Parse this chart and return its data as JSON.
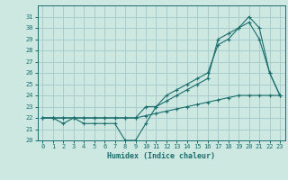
{
  "xlabel": "Humidex (Indice chaleur)",
  "ylabel": "",
  "background_color": "#cce8e0",
  "grid_color": "#aacccc",
  "line_color": "#1a6e6e",
  "xlim": [
    -0.5,
    23.5
  ],
  "ylim": [
    20,
    32
  ],
  "xticks": [
    0,
    1,
    2,
    3,
    4,
    5,
    6,
    7,
    8,
    9,
    10,
    11,
    12,
    13,
    14,
    15,
    16,
    17,
    18,
    19,
    20,
    21,
    22,
    23
  ],
  "yticks": [
    20,
    21,
    22,
    23,
    24,
    25,
    26,
    27,
    28,
    29,
    30,
    31
  ],
  "series1": [
    22,
    22,
    22,
    22,
    22,
    22,
    22,
    22,
    22,
    22,
    23,
    23,
    24,
    24.5,
    25,
    25.5,
    26,
    28.5,
    29,
    30,
    31,
    30,
    26,
    24
  ],
  "series2_flat": [
    22,
    22,
    22,
    22,
    22,
    22,
    22,
    22,
    22,
    22,
    22.2,
    22.4,
    22.6,
    22.8,
    23,
    23.2,
    23.4,
    23.6,
    23.8,
    24,
    24,
    24,
    24,
    24
  ],
  "series3": [
    22,
    22,
    21.5,
    22,
    21.5,
    21.5,
    21.5,
    21.5,
    20,
    20,
    21.5,
    23,
    23.5,
    24,
    24.5,
    25,
    25.5,
    29,
    29.5,
    30,
    30.5,
    29,
    26,
    24
  ]
}
